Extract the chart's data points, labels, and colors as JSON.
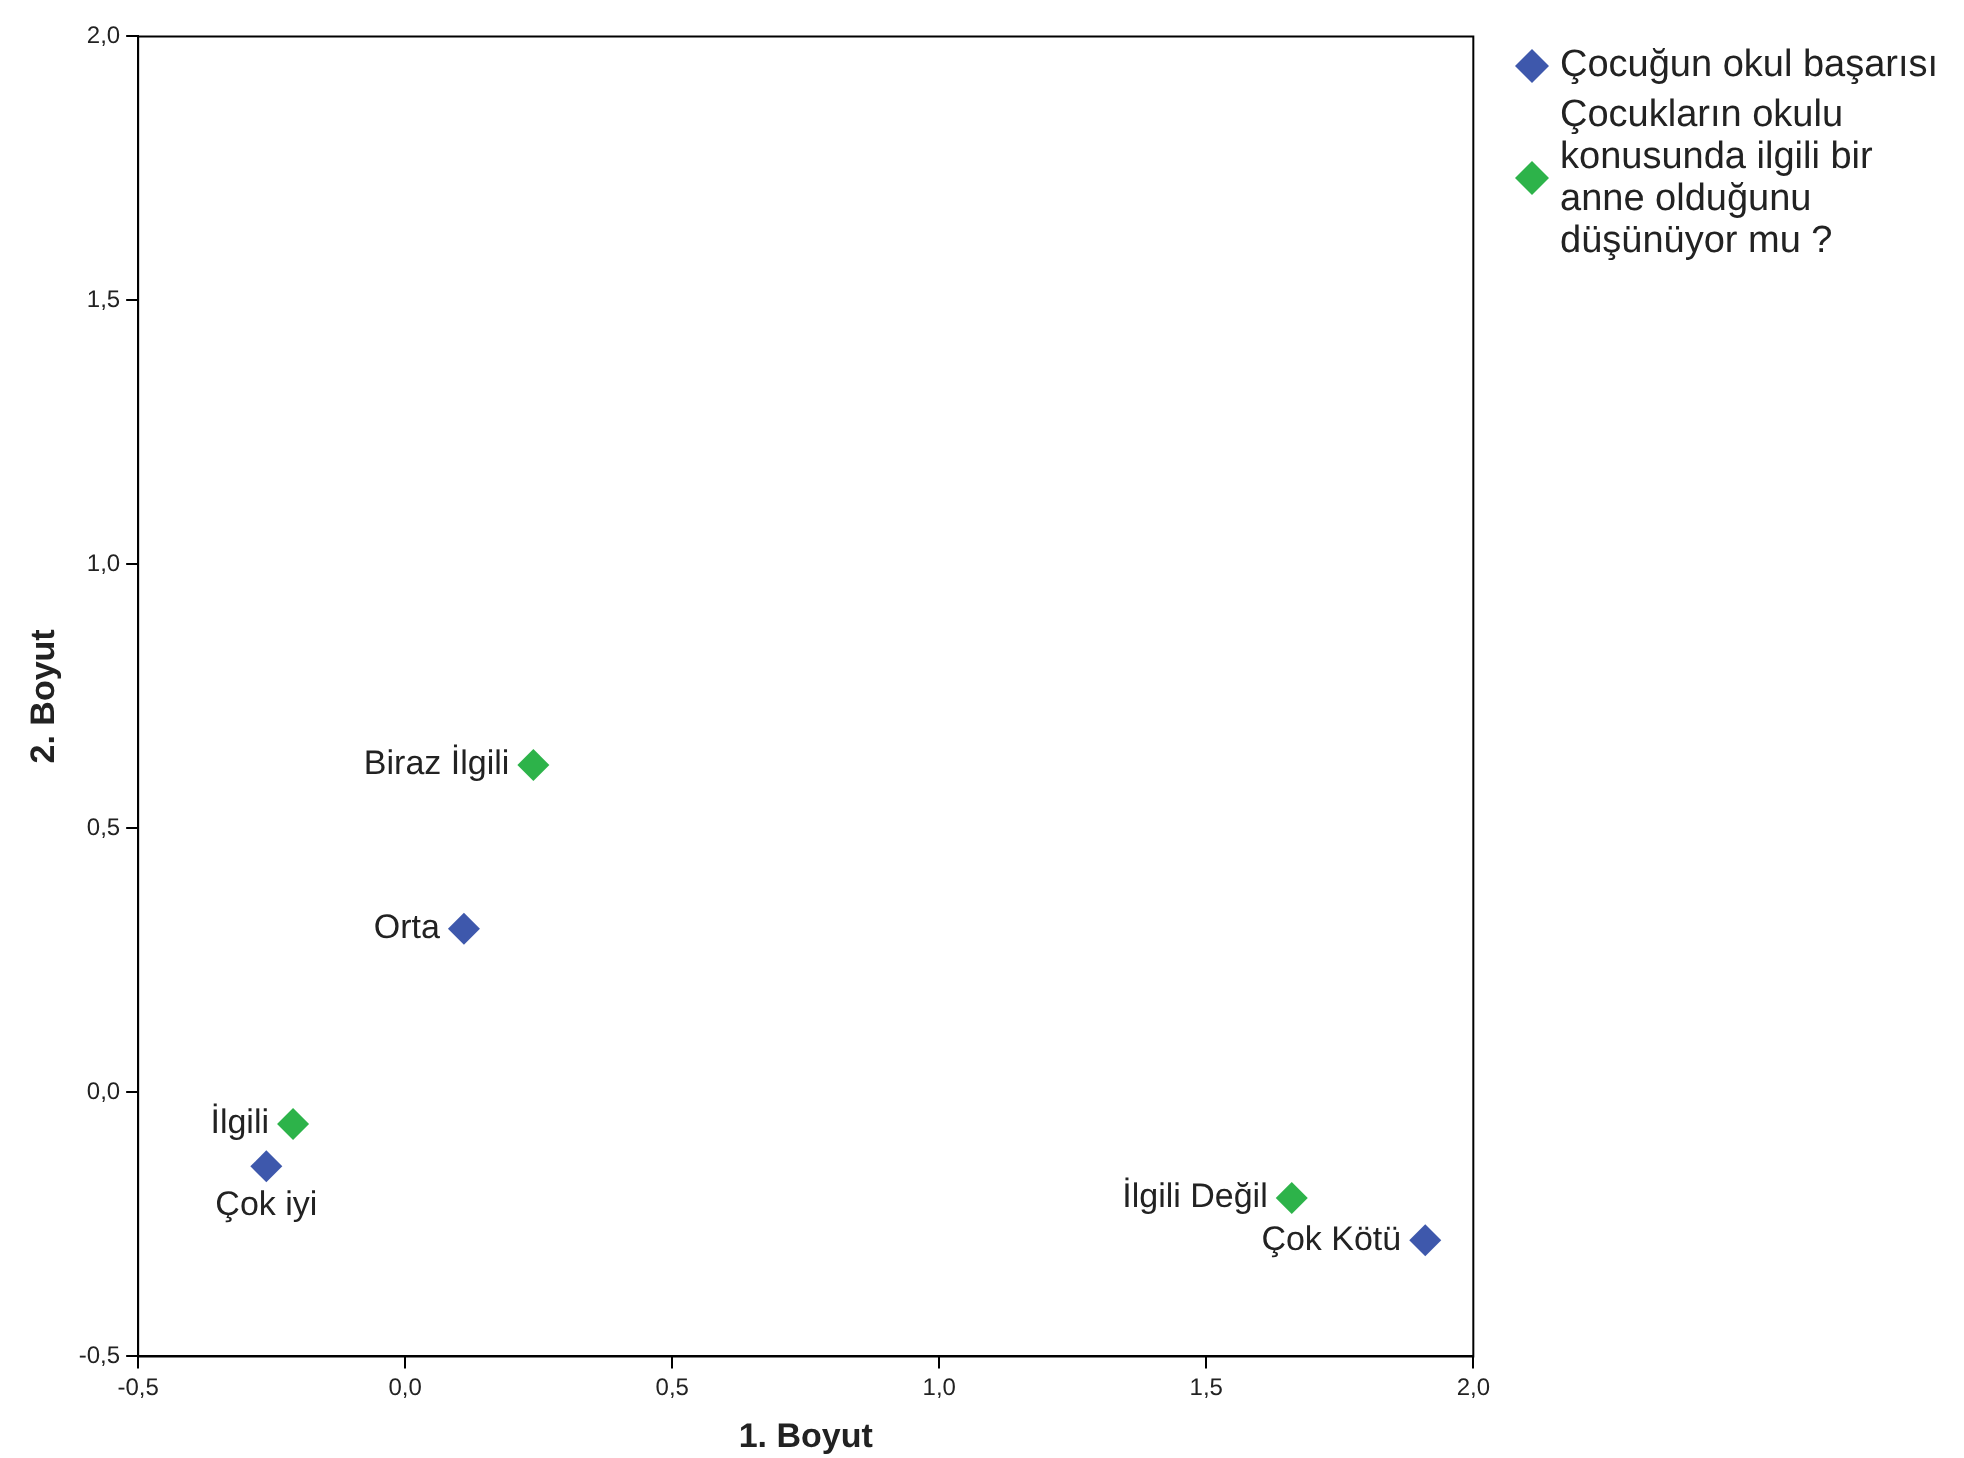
{
  "chart_data": {
    "type": "scatter",
    "xlabel": "1. Boyut",
    "ylabel": "2. Boyut",
    "series": [
      {
        "name": "Çocuğun okul başarısı",
        "color": "#3e58ac",
        "x": [
          -0.26,
          0.11,
          1.91
        ],
        "values": [
          -0.14,
          0.31,
          -0.28
        ]
      },
      {
        "name": "Çocukların okulu konusunda ilgili bir anne olduğunu düşünüyor mu ?",
        "color": "#2db34a",
        "x": [
          -0.21,
          0.24,
          1.66
        ],
        "values": [
          -0.06,
          0.62,
          -0.2
        ]
      }
    ],
    "annotations": [
      {
        "text": "Çok iyi",
        "x": -0.26,
        "y": -0.14
      },
      {
        "text": "Orta",
        "x": 0.11,
        "y": 0.31
      },
      {
        "text": "Çok Kötü",
        "x": 1.91,
        "y": -0.28
      },
      {
        "text": "İlgili",
        "x": -0.21,
        "y": -0.06
      },
      {
        "text": "Biraz İlgili",
        "x": 0.24,
        "y": 0.62
      },
      {
        "text": "İlgili Değil",
        "x": 1.66,
        "y": -0.2
      }
    ],
    "xlim": [
      -0.5,
      2.0
    ],
    "ylim": [
      -0.5,
      2.0
    ],
    "xticks": [
      {
        "value": -0.5,
        "label": "-0,5"
      },
      {
        "value": 0,
        "label": "0,0"
      },
      {
        "value": 0.5,
        "label": "0,5"
      },
      {
        "value": 1.0,
        "label": "1,0"
      },
      {
        "value": 1.5,
        "label": "1,5"
      },
      {
        "value": 2.0,
        "label": "2,0"
      }
    ],
    "yticks": [
      {
        "value": -0.5,
        "label": "-0,5"
      },
      {
        "value": 0,
        "label": "0,0"
      },
      {
        "value": 0.5,
        "label": "0,5"
      },
      {
        "value": 1.0,
        "label": "1,0"
      },
      {
        "value": 1.5,
        "label": "1,5"
      },
      {
        "value": 2.0,
        "label": "2,0"
      }
    ],
    "marker": "diamond",
    "grid": false,
    "legend": "top right"
  }
}
